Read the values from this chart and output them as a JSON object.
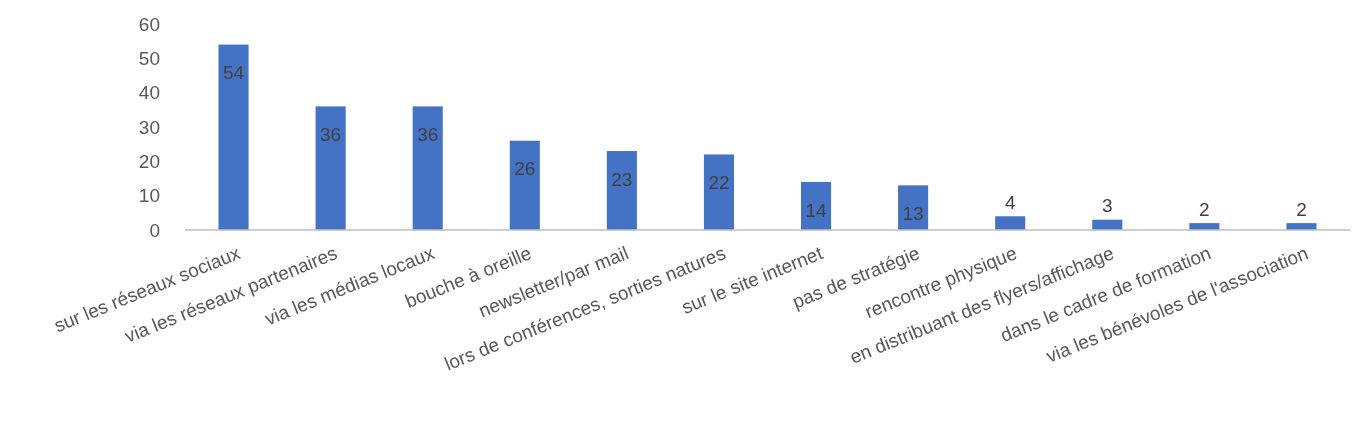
{
  "chart_data": {
    "type": "bar",
    "categories": [
      "sur les réseaux sociaux",
      "via les réseaux partenaires",
      "via les médias locaux",
      "bouche à oreille",
      "newsletter/par mail",
      "lors de conférences, sorties natures",
      "sur le site internet",
      "pas de stratégie",
      "rencontre physique",
      "en distribuant des flyers/affichage",
      "dans le cadre de formation",
      "via les bénévoles de l'association"
    ],
    "values": [
      54,
      36,
      36,
      26,
      23,
      22,
      14,
      13,
      4,
      3,
      2,
      2
    ],
    "color": "#4472c4",
    "ylim": [
      0,
      60
    ],
    "yticks": [
      0,
      10,
      20,
      30,
      40,
      50,
      60
    ],
    "grid": false,
    "data_labels": true
  }
}
